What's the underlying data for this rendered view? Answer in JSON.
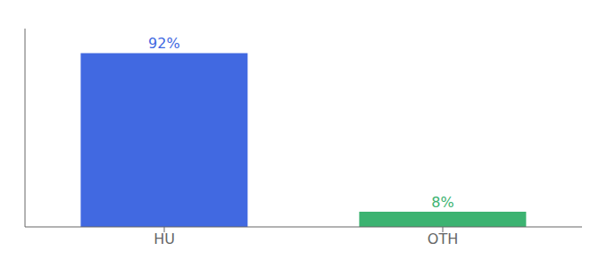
{
  "chart_data": {
    "type": "bar",
    "categories": [
      "HU",
      "OTH"
    ],
    "values": [
      92,
      8
    ],
    "value_labels": [
      "92%",
      "8%"
    ],
    "colors": [
      "#4169E1",
      "#3CB371"
    ],
    "ylim": [
      0,
      105
    ],
    "data_labels": true,
    "tick_labels": "x",
    "grid": false
  }
}
